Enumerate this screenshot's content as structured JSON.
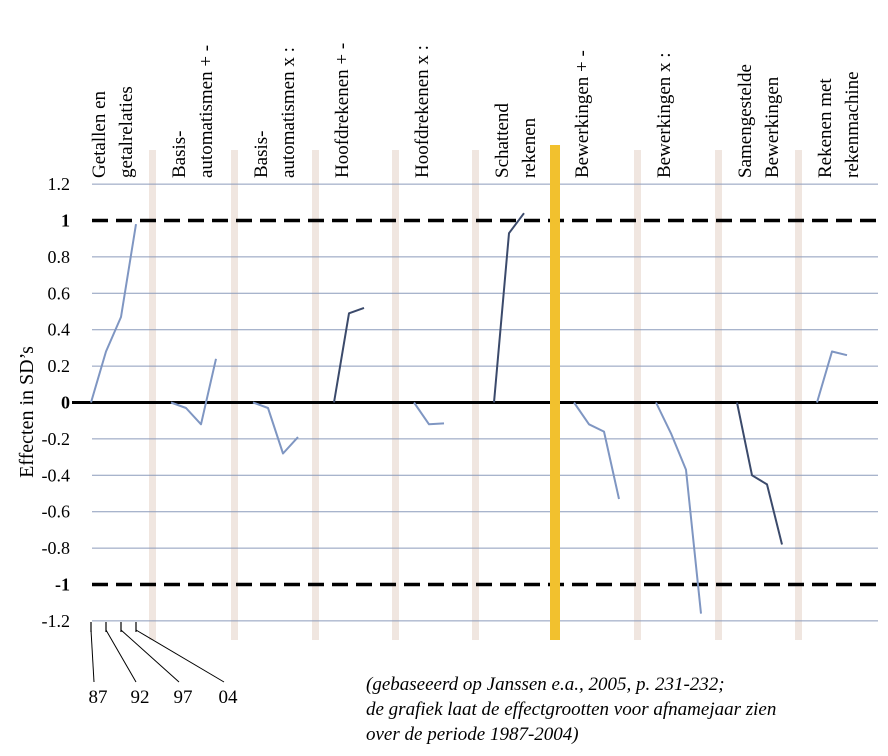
{
  "chart_data": {
    "type": "line",
    "title": "",
    "xlabel": "",
    "ylabel": "Effecten in SD’s",
    "ylim": [
      -1.25,
      1.25
    ],
    "yticks": [
      "1.2",
      "1",
      "0.8",
      "0.6",
      "0.4",
      "0.2",
      "0",
      "-0.2",
      "-0.4",
      "-0.6",
      "-0.8",
      "-1",
      "-1.2"
    ],
    "bold_ticks": [
      "1",
      "0",
      "-1"
    ],
    "reference_lines": [
      1,
      -1
    ],
    "grid": true,
    "years": [
      "87",
      "92",
      "97",
      "04"
    ],
    "series": [
      {
        "name": "Getallen en getalrelaties",
        "values": [
          0,
          0.28,
          0.47,
          0.98
        ],
        "color": "#7f96c2"
      },
      {
        "name": "Basis- automatismen + -",
        "values": [
          0,
          -0.03,
          -0.12,
          0.24
        ],
        "color": "#7f96c2"
      },
      {
        "name": "Basis- automatismen x :",
        "values": [
          0,
          -0.03,
          -0.28,
          -0.19
        ],
        "color": "#7f96c2"
      },
      {
        "name": "Hoofdrekenen + -",
        "values": [
          0,
          0.49,
          0.52
        ],
        "color": "#3b4a6b"
      },
      {
        "name": "Hoofdrekenen x :",
        "values": [
          0,
          -0.12,
          -0.115
        ],
        "color": "#7f96c2"
      },
      {
        "name": "Schattend rekenen",
        "values": [
          0,
          0.93,
          1.04
        ],
        "color": "#3b4a6b"
      },
      {
        "name": "Bewerkingen + -",
        "values": [
          0,
          -0.12,
          -0.16,
          -0.53
        ],
        "color": "#7f96c2"
      },
      {
        "name": "Bewerkingen x :",
        "values": [
          0,
          -0.17,
          -0.37,
          -1.16
        ],
        "color": "#7f96c2"
      },
      {
        "name": "Samengestelde Bewerkingen",
        "values": [
          0,
          -0.4,
          -0.45,
          -0.78
        ],
        "color": "#3b4a6b"
      },
      {
        "name": "Rekenen met rekenmachine",
        "values": [
          0,
          0.28,
          0.26
        ],
        "color": "#7f96c2"
      }
    ]
  },
  "columns": [
    {
      "line1": "Getallen en",
      "line2": "getalrelaties"
    },
    {
      "line1": "Basis-",
      "line2": "automatismen + -"
    },
    {
      "line1": "Basis-",
      "line2": "automatismen x :"
    },
    {
      "line1": "Hoofdrekenen + -",
      "line2": ""
    },
    {
      "line1": "Hoofdrekenen x :",
      "line2": ""
    },
    {
      "line1": "Schattend",
      "line2": "rekenen"
    },
    {
      "line1": "Bewerkingen + -",
      "line2": ""
    },
    {
      "line1": "Bewerkingen x :",
      "line2": ""
    },
    {
      "line1": "Samengestelde",
      "line2": "Bewerkingen"
    },
    {
      "line1": "Rekenen met",
      "line2": "rekenmachine"
    }
  ],
  "colors": {
    "grid": "#8c9bbb",
    "separator": "#f0e6e0",
    "divider": "#f2c12e",
    "reference": "#000000"
  },
  "source_note": [
    "(gebaseeerd op Janssen e.a., 2005, p. 231-232;",
    "de grafiek laat de effectgrootten voor afnamejaar zien",
    "over de periode 1987-2004)"
  ]
}
